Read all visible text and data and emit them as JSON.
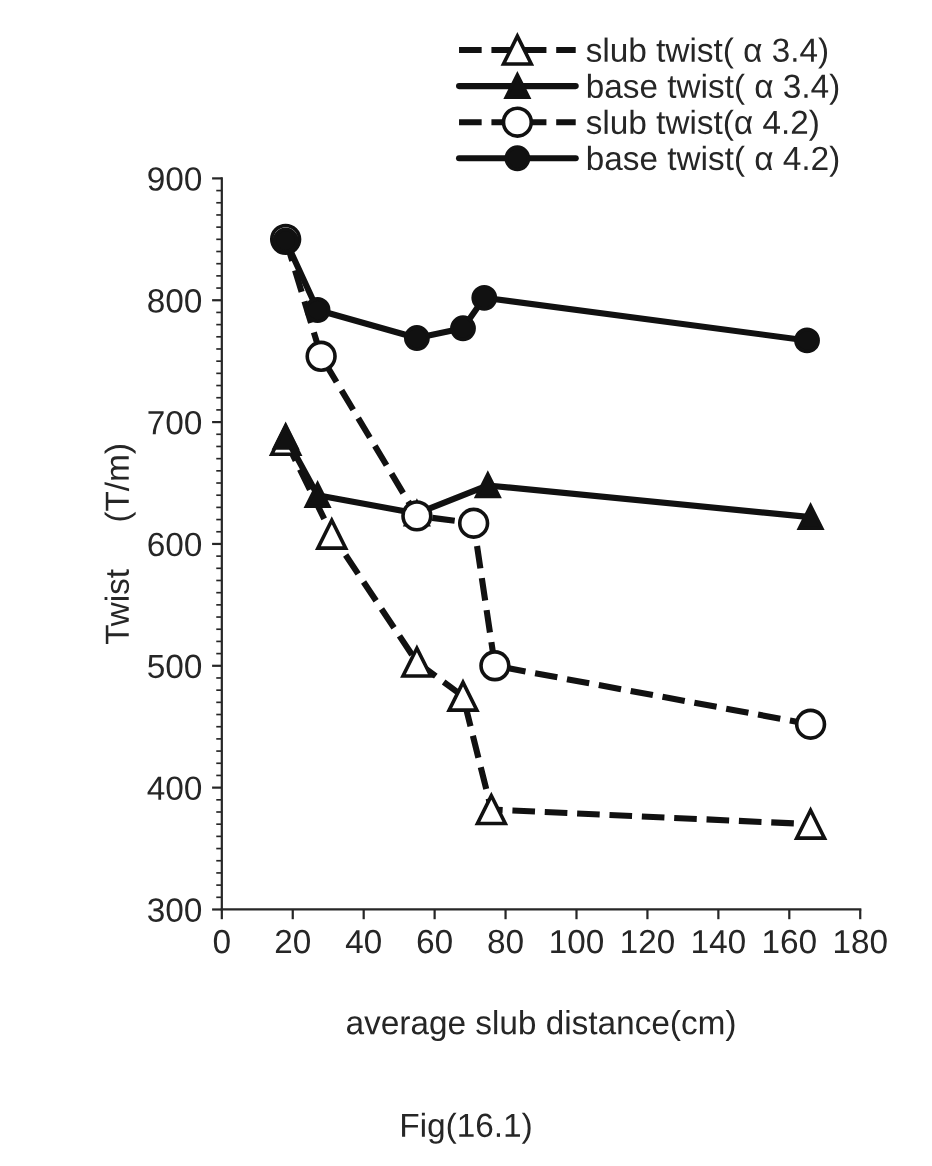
{
  "chart_data": {
    "type": "line",
    "xlabel": "average slub distance(cm)",
    "ylabel": "Twist     (T/m)",
    "annotations": [
      "Fig(16.1)"
    ],
    "xlim": [
      0,
      180
    ],
    "xticks": [
      0,
      20,
      40,
      60,
      80,
      100,
      120,
      140,
      160,
      180
    ],
    "ylim": [
      300,
      900
    ],
    "yticks": [
      300,
      400,
      500,
      600,
      700,
      800,
      900
    ],
    "grid": false,
    "legend": "top right",
    "series": [
      {
        "name": "slub twist( α 3.4)",
        "color": "#111111",
        "marker": "triangle",
        "line_style": "dashed",
        "x": [
          18,
          31,
          55,
          68,
          76,
          166
        ],
        "values": [
          685,
          608,
          503,
          475,
          382,
          370
        ]
      },
      {
        "name": "base twist( α 3.4)",
        "color": "#111111",
        "marker": "triangle",
        "line_style": "solid",
        "x": [
          18,
          27,
          55,
          75,
          166
        ],
        "values": [
          688,
          640,
          625,
          648,
          622
        ]
      },
      {
        "name": "slub twist(α 4.2)",
        "color": "#111111",
        "marker": "circle",
        "line_style": "dashed",
        "x": [
          18,
          28,
          55,
          71,
          77,
          166
        ],
        "values": [
          850,
          754,
          623,
          617,
          500,
          452
        ]
      },
      {
        "name": "base twist( α 4.2)",
        "color": "#111111",
        "marker": "circle",
        "line_style": "solid",
        "x": [
          18,
          27,
          55,
          68,
          74,
          165
        ],
        "values": [
          849,
          792,
          769,
          777,
          802,
          767
        ]
      }
    ]
  }
}
